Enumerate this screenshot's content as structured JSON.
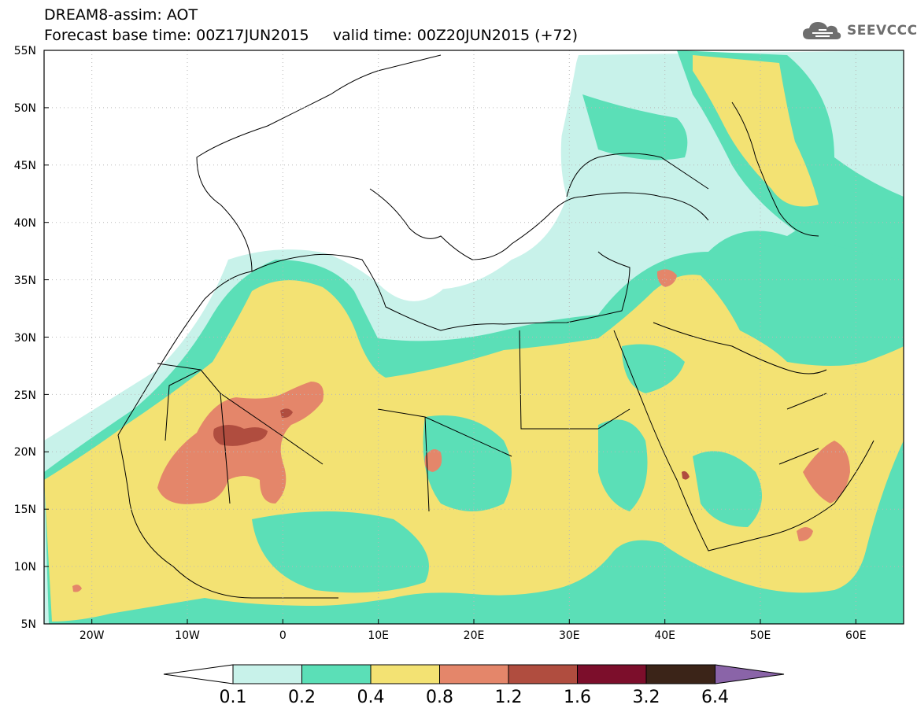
{
  "header": {
    "line1": "DREAM8-assim: AOT",
    "line2": "Forecast base time: 00Z17JUN2015     valid time: 00Z20JUN2015 (+72)"
  },
  "logo": {
    "text": "SEEVCCC",
    "icon": "cloud-icon"
  },
  "map": {
    "variable": "AOT",
    "lat_labels": [
      "55N",
      "50N",
      "45N",
      "40N",
      "35N",
      "30N",
      "25N",
      "20N",
      "15N",
      "10N",
      "5N"
    ],
    "lon_labels": [
      "20W",
      "10W",
      "0",
      "10E",
      "20E",
      "30E",
      "40E",
      "50E",
      "60E"
    ],
    "lat_range": [
      5,
      55
    ],
    "lon_range": [
      -25,
      65
    ],
    "grid": "dotted every 5 degrees",
    "land_outline_color": "#000000"
  },
  "legend": {
    "labels": [
      "0.1",
      "0.2",
      "0.4",
      "0.8",
      "1.2",
      "1.6",
      "3.2",
      "6.4"
    ],
    "colors": [
      "#c8f2ea",
      "#5bdfb7",
      "#f3e273",
      "#e4866a",
      "#b04d3f",
      "#7c0e2b",
      "#3b2418",
      "#8a64a8"
    ],
    "under_color": "#ffffff"
  }
}
